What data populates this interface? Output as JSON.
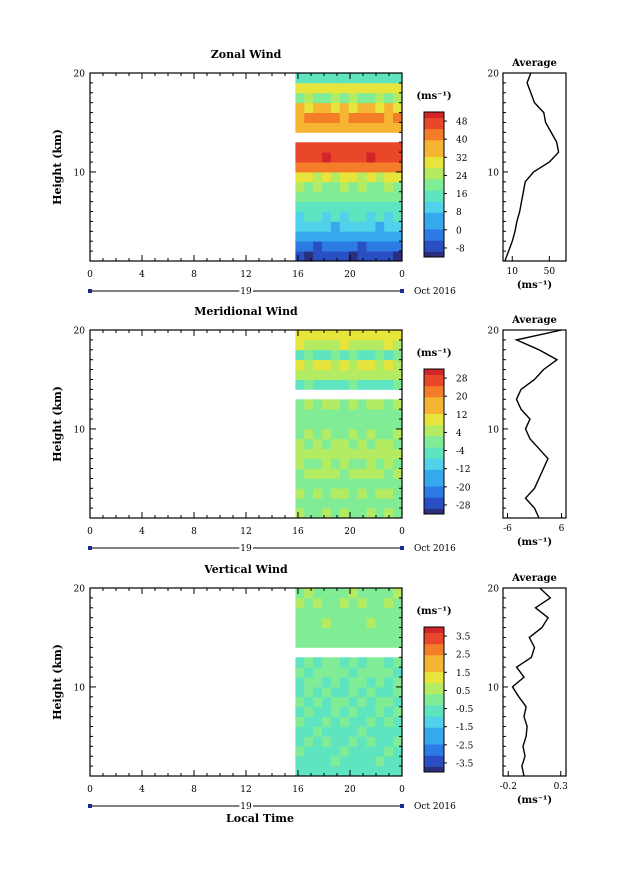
{
  "figure": {
    "common_xlabel": "Local Time",
    "month_label": "Oct 2016",
    "date_label": "19",
    "average_title": "Average"
  },
  "chart_data": [
    {
      "type": "heatmap",
      "title": "Zonal Wind",
      "ylabel": "Height (km)",
      "ylim": [
        1,
        20
      ],
      "yticks": [
        10,
        20
      ],
      "xlim": [
        0,
        24
      ],
      "xticks": [
        "0",
        "4",
        "8",
        "12",
        "16",
        "20",
        "0"
      ],
      "data_x_start": 15.8,
      "colorbar": {
        "label": "(ms⁻¹)",
        "ticks": [
          "-8",
          "0",
          "8",
          "16",
          "24",
          "32",
          "40",
          "48"
        ],
        "min": -12,
        "max": 52
      },
      "layers": [
        {
          "h": [
            1,
            2
          ],
          "v": -8
        },
        {
          "h": [
            2,
            3
          ],
          "v": -3
        },
        {
          "h": [
            3,
            4
          ],
          "v": 3
        },
        {
          "h": [
            4,
            5
          ],
          "v": 8
        },
        {
          "h": [
            5,
            6
          ],
          "v": 12
        },
        {
          "h": [
            6,
            7
          ],
          "v": 15
        },
        {
          "h": [
            7,
            8
          ],
          "v": 19
        },
        {
          "h": [
            8,
            9
          ],
          "v": 22
        },
        {
          "h": [
            9,
            10
          ],
          "v": 28
        },
        {
          "h": [
            10,
            11
          ],
          "v": 42
        },
        {
          "h": [
            11,
            12
          ],
          "v": 48
        },
        {
          "h": [
            12,
            13
          ],
          "v": 46
        },
        {
          "h": [
            14,
            15
          ],
          "v": 35
        },
        {
          "h": [
            15,
            16
          ],
          "v": 40
        },
        {
          "h": [
            16,
            17
          ],
          "v": 34
        },
        {
          "h": [
            17,
            18
          ],
          "v": 22
        },
        {
          "h": [
            18,
            19
          ],
          "v": 30
        },
        {
          "h": [
            19,
            20
          ],
          "v": 14
        }
      ],
      "average": {
        "xlim": [
          0,
          68
        ],
        "xticks": [
          "10",
          "50"
        ],
        "xtick_values": [
          10,
          50
        ],
        "xlabel": "(ms⁻¹)",
        "height": [
          1,
          2,
          3,
          4,
          5,
          6,
          7,
          8,
          9,
          10,
          11,
          12,
          13,
          14,
          15,
          16,
          17,
          18,
          19,
          20
        ],
        "values": [
          2,
          6,
          10,
          13,
          15,
          18,
          20,
          22,
          24,
          33,
          50,
          60,
          58,
          52,
          46,
          44,
          34,
          30,
          26,
          30
        ]
      }
    },
    {
      "type": "heatmap",
      "title": "Meridional Wind",
      "ylabel": "Height (km)",
      "ylim": [
        1,
        20
      ],
      "yticks": [
        10,
        20
      ],
      "xlim": [
        0,
        24
      ],
      "xticks": [
        "0",
        "4",
        "8",
        "12",
        "16",
        "20",
        "0"
      ],
      "data_x_start": 15.8,
      "colorbar": {
        "label": "(ms⁻¹)",
        "ticks": [
          "-28",
          "-20",
          "-12",
          "-4",
          "4",
          "12",
          "20",
          "28"
        ],
        "min": -32,
        "max": 32
      },
      "layers": [
        {
          "h": [
            1,
            2
          ],
          "v": 2
        },
        {
          "h": [
            2,
            3
          ],
          "v": 0
        },
        {
          "h": [
            3,
            4
          ],
          "v": 3
        },
        {
          "h": [
            4,
            5
          ],
          "v": 1
        },
        {
          "h": [
            5,
            6
          ],
          "v": 4
        },
        {
          "h": [
            6,
            7
          ],
          "v": 2
        },
        {
          "h": [
            7,
            8
          ],
          "v": 5
        },
        {
          "h": [
            8,
            9
          ],
          "v": 3
        },
        {
          "h": [
            9,
            10
          ],
          "v": 2
        },
        {
          "h": [
            10,
            11
          ],
          "v": -1
        },
        {
          "h": [
            11,
            12
          ],
          "v": 1
        },
        {
          "h": [
            12,
            13
          ],
          "v": 3
        },
        {
          "h": [
            14,
            15
          ],
          "v": -4
        },
        {
          "h": [
            15,
            16
          ],
          "v": 6
        },
        {
          "h": [
            16,
            17
          ],
          "v": 8
        },
        {
          "h": [
            17,
            18
          ],
          "v": -3
        },
        {
          "h": [
            18,
            19
          ],
          "v": 7
        },
        {
          "h": [
            19,
            20
          ],
          "v": 10
        }
      ],
      "average": {
        "xlim": [
          -7,
          7
        ],
        "xticks": [
          "-6",
          "6"
        ],
        "xtick_values": [
          -6,
          6
        ],
        "xlabel": "(ms⁻¹)",
        "height": [
          1,
          2,
          3,
          4,
          5,
          6,
          7,
          8,
          9,
          10,
          11,
          12,
          13,
          14,
          15,
          16,
          17,
          18,
          19,
          20
        ],
        "values": [
          1,
          0,
          -2,
          0,
          1,
          2,
          3,
          1,
          -1,
          -2,
          -1,
          -3,
          -4,
          -3,
          0,
          2,
          5,
          1,
          -4,
          6
        ]
      }
    },
    {
      "type": "heatmap",
      "title": "Vertical Wind",
      "ylabel": "Height (km)",
      "ylim": [
        1,
        20
      ],
      "yticks": [
        10,
        20
      ],
      "xlim": [
        0,
        24
      ],
      "xticks": [
        "0",
        "4",
        "8",
        "12",
        "16",
        "20",
        "0"
      ],
      "data_x_start": 15.8,
      "colorbar": {
        "label": "(ms⁻¹)",
        "ticks": [
          "-3.5",
          "-2.5",
          "-1.5",
          "-0.5",
          "0.5",
          "1.5",
          "2.5",
          "3.5"
        ],
        "min": -4,
        "max": 4
      },
      "layers": [
        {
          "h": [
            1,
            2
          ],
          "v": -0.6
        },
        {
          "h": [
            2,
            3
          ],
          "v": -0.5
        },
        {
          "h": [
            3,
            4
          ],
          "v": -0.5
        },
        {
          "h": [
            4,
            5
          ],
          "v": -0.4
        },
        {
          "h": [
            5,
            6
          ],
          "v": -0.5
        },
        {
          "h": [
            6,
            7
          ],
          "v": -0.4
        },
        {
          "h": [
            7,
            8
          ],
          "v": -0.4
        },
        {
          "h": [
            8,
            9
          ],
          "v": -0.3
        },
        {
          "h": [
            9,
            10
          ],
          "v": -0.4
        },
        {
          "h": [
            10,
            11
          ],
          "v": -0.3
        },
        {
          "h": [
            11,
            12
          ],
          "v": -0.2
        },
        {
          "h": [
            12,
            13
          ],
          "v": -0.3
        },
        {
          "h": [
            14,
            15
          ],
          "v": -0.1
        },
        {
          "h": [
            15,
            16
          ],
          "v": 0.1
        },
        {
          "h": [
            16,
            17
          ],
          "v": 0.2
        },
        {
          "h": [
            17,
            18
          ],
          "v": 0.1
        },
        {
          "h": [
            18,
            19
          ],
          "v": 0.3
        },
        {
          "h": [
            19,
            20
          ],
          "v": 0.2
        }
      ],
      "average": {
        "xlim": [
          -0.25,
          0.35
        ],
        "xticks": [
          "-0.2",
          "0.3"
        ],
        "xtick_values": [
          -0.2,
          0.3
        ],
        "xlabel": "(ms⁻¹)",
        "height": [
          1,
          2,
          3,
          4,
          5,
          6,
          7,
          8,
          9,
          10,
          11,
          12,
          13,
          14,
          15,
          16,
          17,
          18,
          19,
          20
        ],
        "values": [
          -0.05,
          -0.07,
          -0.04,
          -0.06,
          -0.03,
          -0.02,
          -0.05,
          -0.03,
          -0.1,
          -0.16,
          -0.05,
          -0.12,
          0.02,
          0.05,
          0.0,
          0.12,
          0.18,
          0.06,
          0.2,
          0.1
        ]
      }
    }
  ]
}
